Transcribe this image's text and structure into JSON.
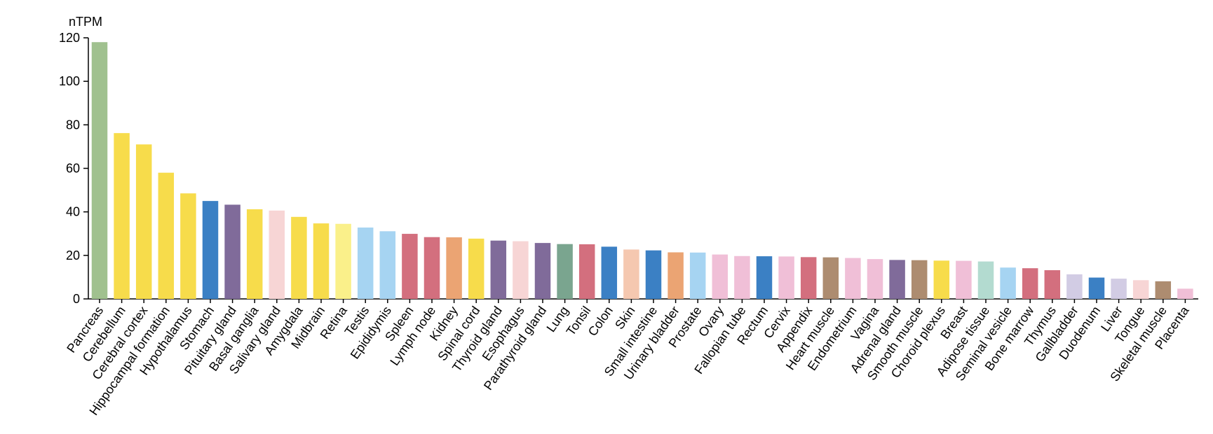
{
  "chart_data": {
    "type": "bar",
    "ylabel": "nTPM",
    "ylim": [
      0,
      120
    ],
    "yticks": [
      0,
      20,
      40,
      60,
      80,
      100,
      120
    ],
    "grid": false,
    "categories": [
      "Pancreas",
      "Cerebellum",
      "Cerebral cortex",
      "Hippocampal formation",
      "Hypothalamus",
      "Stomach",
      "Pituitary gland",
      "Basal ganglia",
      "Salivary gland",
      "Amygdala",
      "Midbrain",
      "Retina",
      "Testis",
      "Epididymis",
      "Spleen",
      "Lymph node",
      "Kidney",
      "Spinal cord",
      "Thyroid gland",
      "Esophagus",
      "Parathyroid gland",
      "Lung",
      "Tonsil",
      "Colon",
      "Skin",
      "Small intestine",
      "Urinary bladder",
      "Prostate",
      "Ovary",
      "Fallopian tube",
      "Rectum",
      "Cervix",
      "Appendix",
      "Heart muscle",
      "Endometrium",
      "Vagina",
      "Adrenal gland",
      "Smooth muscle",
      "Choroid plexus",
      "Breast",
      "Adipose tissue",
      "Seminal vesicle",
      "Bone marrow",
      "Thymus",
      "Gallbladder",
      "Duodenum",
      "Liver",
      "Tongue",
      "Skeletal muscle",
      "Placenta"
    ],
    "values": [
      118,
      76.2,
      71,
      58,
      48.5,
      45,
      43.3,
      41.2,
      40.6,
      37.7,
      34.7,
      34.5,
      32.8,
      31.1,
      29.9,
      28.4,
      28.3,
      27.7,
      26.8,
      26.5,
      25.7,
      25.2,
      25.1,
      24,
      22.7,
      22.3,
      21.4,
      21.3,
      20.4,
      19.7,
      19.6,
      19.5,
      19.2,
      19.1,
      18.8,
      18.3,
      17.9,
      17.8,
      17.6,
      17.5,
      17.2,
      14.4,
      14.1,
      13.2,
      11.3,
      9.8,
      9.3,
      8.6,
      8.1,
      4.7
    ],
    "colors": [
      "#a0c18f",
      "#f7dc4b",
      "#f7dc4b",
      "#f7dc4b",
      "#f7dc4b",
      "#3b80c4",
      "#806b9a",
      "#f7dc4b",
      "#f7d5d5",
      "#f7dc4b",
      "#f7dc4b",
      "#faf08a",
      "#a6d4f2",
      "#a6d4f2",
      "#d36f7e",
      "#d36f7e",
      "#eba473",
      "#f7dc4b",
      "#806b9a",
      "#f7d5d5",
      "#806b9a",
      "#7aa58f",
      "#d36f7e",
      "#3b80c4",
      "#f5c8b0",
      "#3b80c4",
      "#eba473",
      "#a6d4f2",
      "#f0bfd7",
      "#f0bfd7",
      "#3b80c4",
      "#f0bfd7",
      "#d36f7e",
      "#ad8c70",
      "#f0bfd7",
      "#f0bfd7",
      "#806b9a",
      "#ad8c70",
      "#f7dc4b",
      "#f0bfd7",
      "#b3dbd0",
      "#a6d4f2",
      "#d36f7e",
      "#d36f7e",
      "#d2cce4",
      "#3b80c4",
      "#d2cce4",
      "#f7d5d5",
      "#ad8c70",
      "#f0bfd7"
    ]
  }
}
